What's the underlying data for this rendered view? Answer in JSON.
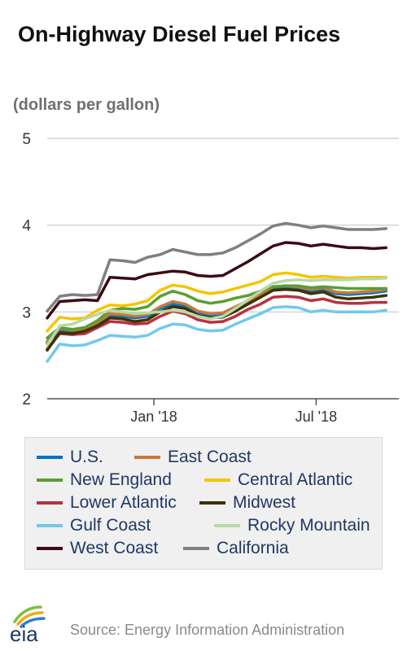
{
  "title": "On-Highway Diesel Fuel Prices",
  "units_label": "(dollars per gallon)",
  "source": "Source: Energy Information Administration",
  "logo_text": "eia",
  "chart_data": {
    "type": "line",
    "title": "On-Highway Diesel Fuel Prices",
    "ylabel": "(dollars per gallon)",
    "xlabel": "",
    "ylim": [
      2,
      5
    ],
    "yticks": [
      "2",
      "3",
      "4",
      "5"
    ],
    "xlim": [
      "2017-09-04",
      "2018-09-24"
    ],
    "xticks": [
      {
        "date": "2018-01-01",
        "label": "Jan '18"
      },
      {
        "date": "2018-07-01",
        "label": "Jul '18"
      }
    ],
    "grid": "horizontal",
    "legend_position": "bottom",
    "x": [
      "2017-09-04",
      "2017-09-18",
      "2017-10-02",
      "2017-10-16",
      "2017-10-30",
      "2017-11-13",
      "2017-11-27",
      "2017-12-11",
      "2017-12-25",
      "2018-01-08",
      "2018-01-22",
      "2018-02-05",
      "2018-02-19",
      "2018-03-05",
      "2018-03-19",
      "2018-04-02",
      "2018-04-16",
      "2018-04-30",
      "2018-05-14",
      "2018-05-28",
      "2018-06-11",
      "2018-06-25",
      "2018-07-09",
      "2018-07-23",
      "2018-08-06",
      "2018-08-20",
      "2018-09-03",
      "2018-09-17"
    ],
    "series": [
      {
        "name": "U.S.",
        "color": "#0a73c2",
        "values": [
          2.64,
          2.79,
          2.77,
          2.79,
          2.86,
          2.96,
          2.95,
          2.93,
          2.95,
          3.04,
          3.09,
          3.07,
          2.99,
          2.96,
          2.97,
          3.04,
          3.11,
          3.18,
          3.27,
          3.28,
          3.27,
          3.24,
          3.26,
          3.21,
          3.2,
          3.21,
          3.22,
          3.24
        ]
      },
      {
        "name": "East Coast",
        "color": "#c87a3a",
        "values": [
          2.66,
          2.81,
          2.79,
          2.8,
          2.88,
          2.98,
          2.97,
          2.95,
          2.97,
          3.06,
          3.12,
          3.09,
          3.01,
          2.98,
          2.99,
          3.06,
          3.13,
          3.2,
          3.29,
          3.3,
          3.29,
          3.26,
          3.28,
          3.23,
          3.22,
          3.23,
          3.24,
          3.26
        ]
      },
      {
        "name": "New England",
        "color": "#5a9e32",
        "values": [
          2.7,
          2.82,
          2.8,
          2.82,
          2.9,
          3.02,
          3.04,
          3.03,
          3.06,
          3.18,
          3.24,
          3.2,
          3.13,
          3.1,
          3.12,
          3.16,
          3.19,
          3.24,
          3.29,
          3.3,
          3.3,
          3.28,
          3.29,
          3.28,
          3.27,
          3.27,
          3.27,
          3.27
        ]
      },
      {
        "name": "Central Atlantic",
        "color": "#f5c400",
        "values": [
          2.78,
          2.94,
          2.92,
          2.93,
          3.02,
          3.08,
          3.07,
          3.09,
          3.13,
          3.25,
          3.31,
          3.29,
          3.24,
          3.21,
          3.23,
          3.27,
          3.31,
          3.35,
          3.43,
          3.45,
          3.43,
          3.4,
          3.41,
          3.4,
          3.39,
          3.4,
          3.4,
          3.4
        ]
      },
      {
        "name": "Lower Atlantic",
        "color": "#b8323f",
        "values": [
          2.57,
          2.75,
          2.74,
          2.75,
          2.82,
          2.89,
          2.88,
          2.86,
          2.87,
          2.95,
          3.01,
          2.98,
          2.91,
          2.88,
          2.89,
          2.95,
          3.03,
          3.09,
          3.17,
          3.18,
          3.17,
          3.13,
          3.15,
          3.11,
          3.1,
          3.1,
          3.11,
          3.11
        ]
      },
      {
        "name": "Midwest",
        "color": "#3d3200",
        "values": [
          2.56,
          2.76,
          2.75,
          2.78,
          2.84,
          2.93,
          2.92,
          2.89,
          2.91,
          3.0,
          3.06,
          3.04,
          2.96,
          2.93,
          2.94,
          3.01,
          3.09,
          3.17,
          3.25,
          3.26,
          3.25,
          3.21,
          3.23,
          3.17,
          3.15,
          3.16,
          3.17,
          3.19
        ]
      },
      {
        "name": "Gulf Coast",
        "color": "#72c8f0",
        "values": [
          2.43,
          2.63,
          2.61,
          2.62,
          2.67,
          2.73,
          2.72,
          2.71,
          2.73,
          2.81,
          2.86,
          2.85,
          2.8,
          2.78,
          2.79,
          2.86,
          2.92,
          2.98,
          3.05,
          3.06,
          3.05,
          3.0,
          3.02,
          3.0,
          3.0,
          3.0,
          3.0,
          3.02
        ]
      },
      {
        "name": "Rocky Mountain",
        "color": "#b8d9a4",
        "values": [
          2.62,
          2.84,
          2.86,
          2.92,
          2.97,
          3.02,
          3.0,
          2.98,
          2.99,
          3.0,
          3.02,
          3.0,
          2.95,
          2.92,
          2.95,
          3.04,
          3.14,
          3.24,
          3.33,
          3.36,
          3.37,
          3.36,
          3.37,
          3.37,
          3.37,
          3.38,
          3.38,
          3.39
        ]
      },
      {
        "name": "West Coast",
        "color": "#3c0a12",
        "values": [
          2.93,
          3.12,
          3.13,
          3.14,
          3.13,
          3.4,
          3.39,
          3.38,
          3.43,
          3.45,
          3.47,
          3.46,
          3.42,
          3.41,
          3.42,
          3.5,
          3.58,
          3.67,
          3.76,
          3.8,
          3.79,
          3.76,
          3.78,
          3.76,
          3.74,
          3.74,
          3.73,
          3.74
        ]
      },
      {
        "name": "California",
        "color": "#7f7f7f",
        "values": [
          3.01,
          3.18,
          3.2,
          3.19,
          3.2,
          3.6,
          3.59,
          3.57,
          3.63,
          3.66,
          3.72,
          3.69,
          3.66,
          3.66,
          3.68,
          3.74,
          3.82,
          3.9,
          3.99,
          4.02,
          4.0,
          3.97,
          3.99,
          3.97,
          3.95,
          3.95,
          3.95,
          3.96
        ]
      }
    ]
  }
}
